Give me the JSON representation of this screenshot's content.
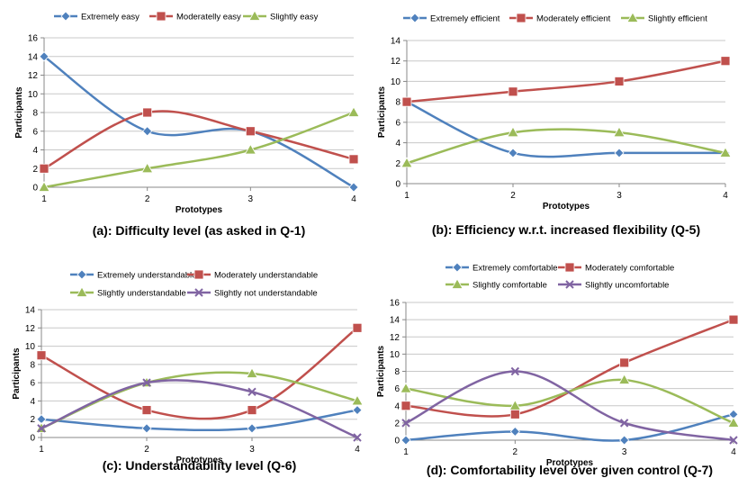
{
  "colors": {
    "blue": "#4f81bd",
    "red": "#c0504d",
    "green": "#9bbb59",
    "purple": "#8064a2",
    "grid": "#c8c8c8",
    "axis": "#888888",
    "text": "#000000"
  },
  "chart_data": [
    {
      "id": "a",
      "type": "line",
      "smooth": true,
      "title": "(a): Difficulty level (as asked in Q-1)",
      "xlabel": "Prototypes",
      "ylabel": "Participants",
      "x": [
        1,
        2,
        3,
        4
      ],
      "ylim": [
        0,
        16
      ],
      "ystep": 2,
      "grid": true,
      "series": [
        {
          "name": "Extremely easy",
          "color": "#4f81bd",
          "marker": "diamond",
          "values": [
            14,
            6,
            6,
            0
          ]
        },
        {
          "name": "Moderatelly easy",
          "color": "#c0504d",
          "marker": "square",
          "values": [
            2,
            8,
            6,
            3
          ]
        },
        {
          "name": "Slightly easy",
          "color": "#9bbb59",
          "marker": "triangle",
          "values": [
            0,
            2,
            4,
            8
          ]
        }
      ]
    },
    {
      "id": "b",
      "type": "line",
      "smooth": true,
      "title": "(b): Efficiency w.r.t. increased flexibility (Q-5)",
      "xlabel": "Prototypes",
      "ylabel": "Participants",
      "x": [
        1,
        2,
        3,
        4
      ],
      "ylim": [
        0,
        14
      ],
      "ystep": 2,
      "grid": true,
      "series": [
        {
          "name": "Extremely efficient",
          "color": "#4f81bd",
          "marker": "diamond",
          "values": [
            8,
            3,
            3,
            3
          ]
        },
        {
          "name": "Moderately efficient",
          "color": "#c0504d",
          "marker": "square",
          "values": [
            8,
            9,
            10,
            12
          ]
        },
        {
          "name": "Slightly efficient",
          "color": "#9bbb59",
          "marker": "triangle",
          "values": [
            2,
            5,
            5,
            3
          ]
        }
      ]
    },
    {
      "id": "c",
      "type": "line",
      "smooth": true,
      "title": "(c): Understandability level (Q-6)",
      "xlabel": "Prototypes",
      "ylabel": "Participants",
      "x": [
        1,
        2,
        3,
        4
      ],
      "ylim": [
        0,
        14
      ],
      "ystep": 2,
      "grid": true,
      "series": [
        {
          "name": "Extremely understandable",
          "color": "#4f81bd",
          "marker": "diamond",
          "values": [
            2,
            1,
            1,
            3
          ]
        },
        {
          "name": "Moderately understandable",
          "color": "#c0504d",
          "marker": "square",
          "values": [
            9,
            3,
            3,
            12
          ]
        },
        {
          "name": "Slightly understandable",
          "color": "#9bbb59",
          "marker": "triangle",
          "values": [
            1,
            6,
            7,
            4
          ]
        },
        {
          "name": "Slightly not understandable",
          "color": "#8064a2",
          "marker": "x",
          "values": [
            1,
            6,
            5,
            0
          ]
        }
      ]
    },
    {
      "id": "d",
      "type": "line",
      "smooth": true,
      "title": "(d): Comfortability level over given control (Q-7)",
      "xlabel": "Prototypes",
      "ylabel": "Participants",
      "x": [
        1,
        2,
        3,
        4
      ],
      "ylim": [
        0,
        16
      ],
      "ystep": 2,
      "grid": true,
      "series": [
        {
          "name": "Extremely comfortable",
          "color": "#4f81bd",
          "marker": "diamond",
          "values": [
            0,
            1,
            0,
            3
          ]
        },
        {
          "name": "Moderately comfortable",
          "color": "#c0504d",
          "marker": "square",
          "values": [
            4,
            3,
            9,
            14
          ]
        },
        {
          "name": "Slightly comfortable",
          "color": "#9bbb59",
          "marker": "triangle",
          "values": [
            6,
            4,
            7,
            2
          ]
        },
        {
          "name": "Slightly uncomfortable",
          "color": "#8064a2",
          "marker": "x",
          "values": [
            2,
            8,
            2,
            0
          ]
        }
      ]
    }
  ]
}
